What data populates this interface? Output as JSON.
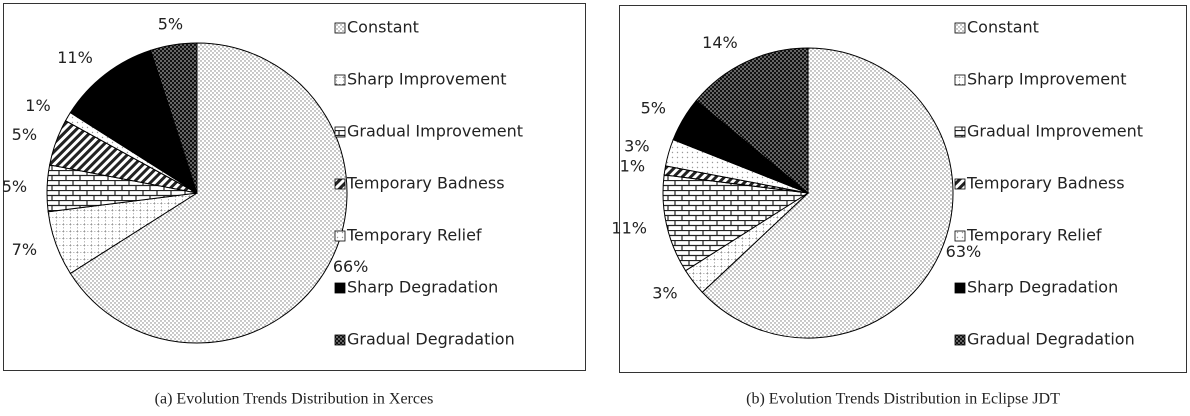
{
  "chart_data": [
    {
      "type": "pie",
      "title": "(a) Evolution Trends Distribution in Xerces",
      "categories": [
        "Constant",
        "Sharp Improvement",
        "Gradual Improvement",
        "Temporary Badness",
        "Temporary Relief",
        "Sharp Degradation",
        "Gradual Degradation"
      ],
      "values": [
        66,
        7,
        5,
        5,
        1,
        11,
        5
      ],
      "value_labels": [
        "66%",
        "7%",
        "5%",
        "5%",
        "1%",
        "11%",
        "5%"
      ]
    },
    {
      "type": "pie",
      "title": "(b) Evolution Trends Distribution in Eclipse JDT",
      "categories": [
        "Constant",
        "Sharp Improvement",
        "Gradual Improvement",
        "Temporary Badness",
        "Temporary Relief",
        "Sharp Degradation",
        "Gradual Degradation"
      ],
      "values": [
        63,
        3,
        11,
        1,
        3,
        5,
        14
      ],
      "value_labels": [
        "63%",
        "3%",
        "11%",
        "1%",
        "3%",
        "5%",
        "14%"
      ]
    }
  ]
}
